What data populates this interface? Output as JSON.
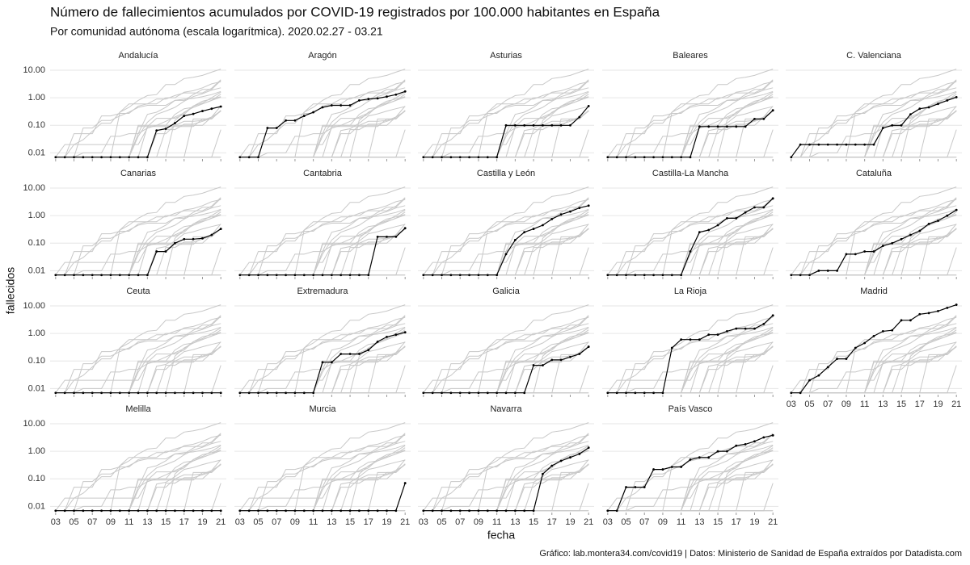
{
  "chart_data": {
    "type": "line",
    "title": "Número de fallecimientos acumulados por COVID-19 registrados por 100.000 habitantes en España",
    "subtitle": "Por comunidad autónoma (escala logarítmica). 2020.02.27 - 03.21",
    "xlabel": "fecha",
    "ylabel": "fallecidos",
    "caption": "Gráfico: lab.montera34.com/covid19 | Datos: Ministerio de Sanidad de España extraídos por Datadista.com",
    "log_scale": true,
    "grid": true,
    "color": "#000000",
    "context_color": "#c8c8c8",
    "x": [
      3,
      4,
      5,
      6,
      7,
      8,
      9,
      10,
      11,
      12,
      13,
      14,
      15,
      16,
      17,
      18,
      19,
      20,
      21
    ],
    "xlim": [
      2.4,
      21.6
    ],
    "xticks": [
      {
        "value": 3,
        "label": "03"
      },
      {
        "value": 5,
        "label": "05"
      },
      {
        "value": 7,
        "label": "07"
      },
      {
        "value": 9,
        "label": "09"
      },
      {
        "value": 11,
        "label": "11"
      },
      {
        "value": 13,
        "label": "13"
      },
      {
        "value": 15,
        "label": "15"
      },
      {
        "value": 17,
        "label": "17"
      },
      {
        "value": 19,
        "label": "19"
      },
      {
        "value": 21,
        "label": "21"
      }
    ],
    "ylim": [
      0.006,
      16
    ],
    "yticks": [
      {
        "value": 0.01,
        "label": "0.01"
      },
      {
        "value": 0.1,
        "label": "0.10"
      },
      {
        "value": 1,
        "label": "1.00"
      },
      {
        "value": 10,
        "label": "10.00"
      }
    ],
    "series": [
      {
        "name": "Andalucía",
        "values": [
          0.007,
          0.007,
          0.007,
          0.007,
          0.007,
          0.007,
          0.007,
          0.007,
          0.007,
          0.007,
          0.007,
          0.065,
          0.075,
          0.12,
          0.22,
          0.26,
          0.33,
          0.4,
          0.48
        ]
      },
      {
        "name": "Aragón",
        "values": [
          0.007,
          0.007,
          0.007,
          0.08,
          0.08,
          0.15,
          0.15,
          0.22,
          0.3,
          0.45,
          0.53,
          0.53,
          0.53,
          0.8,
          0.9,
          0.95,
          1.1,
          1.3,
          1.7
        ]
      },
      {
        "name": "Asturias",
        "values": [
          0.007,
          0.007,
          0.007,
          0.007,
          0.007,
          0.007,
          0.007,
          0.007,
          0.007,
          0.1,
          0.1,
          0.1,
          0.1,
          0.1,
          0.1,
          0.1,
          0.1,
          0.2,
          0.5
        ]
      },
      {
        "name": "Baleares",
        "values": [
          0.007,
          0.007,
          0.007,
          0.007,
          0.007,
          0.007,
          0.007,
          0.007,
          0.007,
          0.007,
          0.09,
          0.09,
          0.09,
          0.09,
          0.09,
          0.09,
          0.17,
          0.17,
          0.35
        ]
      },
      {
        "name": "C. Valenciana",
        "values": [
          0.007,
          0.02,
          0.02,
          0.02,
          0.02,
          0.02,
          0.02,
          0.02,
          0.02,
          0.02,
          0.08,
          0.1,
          0.1,
          0.25,
          0.4,
          0.45,
          0.6,
          0.8,
          1.05
        ]
      },
      {
        "name": "Canarias",
        "values": [
          0.007,
          0.007,
          0.007,
          0.007,
          0.007,
          0.007,
          0.007,
          0.007,
          0.007,
          0.007,
          0.007,
          0.05,
          0.05,
          0.1,
          0.14,
          0.14,
          0.15,
          0.2,
          0.33
        ]
      },
      {
        "name": "Cantabria",
        "values": [
          0.007,
          0.007,
          0.007,
          0.007,
          0.007,
          0.007,
          0.007,
          0.007,
          0.007,
          0.007,
          0.007,
          0.007,
          0.007,
          0.007,
          0.007,
          0.17,
          0.17,
          0.17,
          0.35
        ]
      },
      {
        "name": "Castilla y León",
        "values": [
          0.007,
          0.007,
          0.007,
          0.007,
          0.007,
          0.007,
          0.007,
          0.007,
          0.007,
          0.04,
          0.13,
          0.25,
          0.33,
          0.45,
          0.75,
          1.1,
          1.4,
          1.9,
          2.3
        ]
      },
      {
        "name": "Castilla-La Mancha",
        "values": [
          0.007,
          0.007,
          0.007,
          0.007,
          0.007,
          0.007,
          0.007,
          0.007,
          0.007,
          0.05,
          0.25,
          0.3,
          0.45,
          0.8,
          0.8,
          1.3,
          2.0,
          2.0,
          4.2
        ]
      },
      {
        "name": "Cataluña",
        "values": [
          0.007,
          0.007,
          0.007,
          0.01,
          0.01,
          0.01,
          0.04,
          0.04,
          0.05,
          0.05,
          0.08,
          0.1,
          0.14,
          0.2,
          0.28,
          0.5,
          0.65,
          1.0,
          1.6
        ]
      },
      {
        "name": "Ceuta",
        "values": [
          0.007,
          0.007,
          0.007,
          0.007,
          0.007,
          0.007,
          0.007,
          0.007,
          0.007,
          0.007,
          0.007,
          0.007,
          0.007,
          0.007,
          0.007,
          0.007,
          0.007,
          0.007,
          0.007
        ]
      },
      {
        "name": "Extremadura",
        "values": [
          0.007,
          0.007,
          0.007,
          0.007,
          0.007,
          0.007,
          0.007,
          0.007,
          0.007,
          0.09,
          0.09,
          0.18,
          0.18,
          0.18,
          0.25,
          0.5,
          0.75,
          0.9,
          1.1
        ]
      },
      {
        "name": "Galicia",
        "values": [
          0.007,
          0.007,
          0.007,
          0.007,
          0.007,
          0.007,
          0.007,
          0.007,
          0.007,
          0.007,
          0.007,
          0.007,
          0.07,
          0.07,
          0.11,
          0.11,
          0.14,
          0.18,
          0.33
        ]
      },
      {
        "name": "La Rioja",
        "values": [
          0.007,
          0.007,
          0.007,
          0.007,
          0.007,
          0.007,
          0.007,
          0.3,
          0.6,
          0.6,
          0.6,
          0.9,
          0.9,
          1.2,
          1.5,
          1.5,
          1.5,
          2.2,
          4.5
        ]
      },
      {
        "name": "Madrid",
        "values": [
          0.007,
          0.007,
          0.02,
          0.03,
          0.06,
          0.12,
          0.12,
          0.3,
          0.45,
          0.8,
          1.2,
          1.3,
          3.0,
          3.0,
          5.0,
          5.5,
          6.5,
          8.5,
          11
        ]
      },
      {
        "name": "Melilla",
        "values": [
          0.007,
          0.007,
          0.007,
          0.007,
          0.007,
          0.007,
          0.007,
          0.007,
          0.007,
          0.007,
          0.007,
          0.007,
          0.007,
          0.007,
          0.007,
          0.007,
          0.007,
          0.007,
          0.007
        ]
      },
      {
        "name": "Murcia",
        "values": [
          0.007,
          0.007,
          0.007,
          0.007,
          0.007,
          0.007,
          0.007,
          0.007,
          0.007,
          0.007,
          0.007,
          0.007,
          0.007,
          0.007,
          0.007,
          0.007,
          0.007,
          0.007,
          0.07
        ]
      },
      {
        "name": "Navarra",
        "values": [
          0.007,
          0.007,
          0.007,
          0.007,
          0.007,
          0.007,
          0.007,
          0.007,
          0.007,
          0.007,
          0.007,
          0.007,
          0.007,
          0.15,
          0.3,
          0.45,
          0.6,
          0.8,
          1.35
        ]
      },
      {
        "name": "País Vasco",
        "values": [
          0.007,
          0.007,
          0.05,
          0.05,
          0.05,
          0.22,
          0.22,
          0.27,
          0.27,
          0.5,
          0.6,
          0.6,
          1.0,
          1.0,
          1.6,
          1.8,
          2.3,
          3.2,
          3.8
        ]
      }
    ]
  }
}
